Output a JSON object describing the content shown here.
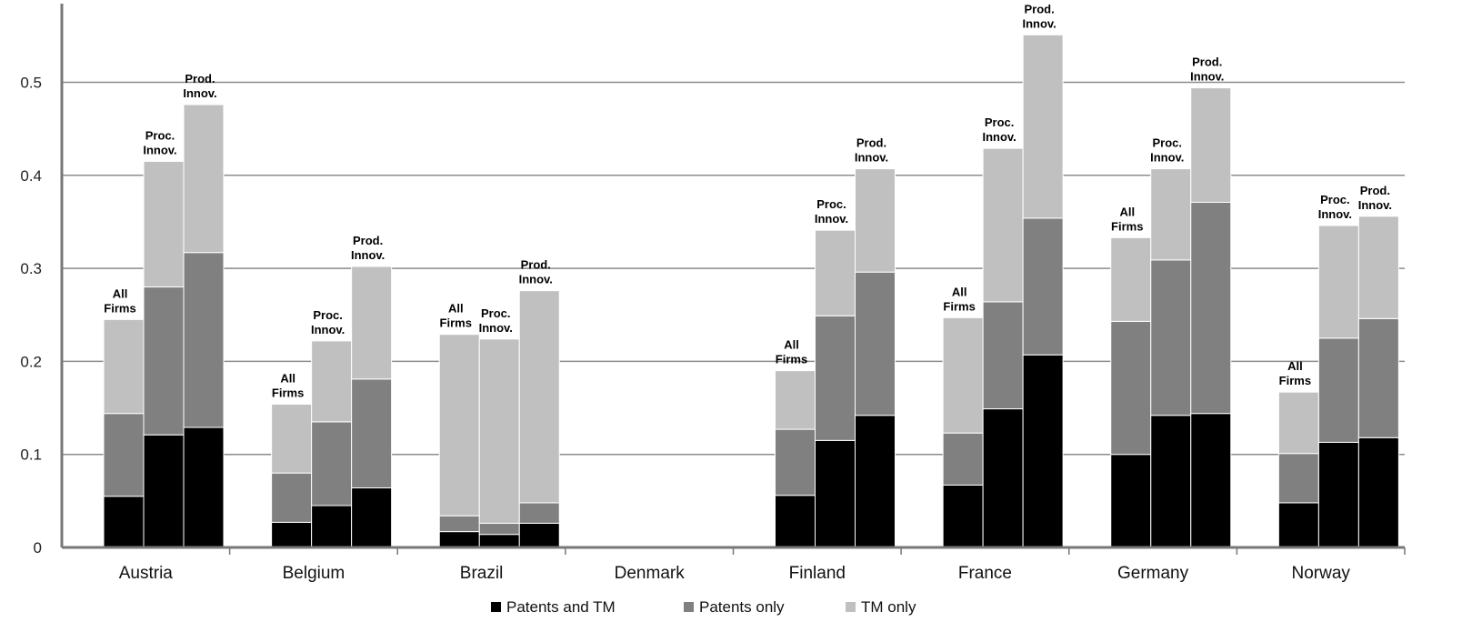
{
  "chart_data": {
    "type": "bar",
    "stacked": true,
    "title": "",
    "xlabel": "",
    "ylabel": "",
    "ylim": [
      0,
      0.55
    ],
    "yticks": [
      0,
      0.1,
      0.2,
      0.3,
      0.4,
      0.5
    ],
    "ytick_labels": [
      "0",
      "0.1",
      "0.2",
      "0.3",
      "0.4",
      "0.5"
    ],
    "grid": true,
    "legend_position": "bottom",
    "series": [
      {
        "name": "Patents and TM",
        "color": "#000000"
      },
      {
        "name": "Patents only",
        "color": "#808080"
      },
      {
        "name": "TM only",
        "color": "#c0c0c0"
      }
    ],
    "countries": [
      {
        "name": "Austria",
        "bars": [
          {
            "label_lines": [
              "All",
              "Firms"
            ],
            "values": [
              0.055,
              0.089,
              0.101
            ]
          },
          {
            "label_lines": [
              "Proc.",
              "Innov."
            ],
            "values": [
              0.121,
              0.159,
              0.135
            ]
          },
          {
            "label_lines": [
              "Prod.",
              "Innov."
            ],
            "values": [
              0.129,
              0.188,
              0.159
            ]
          }
        ]
      },
      {
        "name": "Belgium",
        "bars": [
          {
            "label_lines": [
              "All",
              "Firms"
            ],
            "values": [
              0.027,
              0.053,
              0.074
            ]
          },
          {
            "label_lines": [
              "Proc.",
              "Innov."
            ],
            "values": [
              0.045,
              0.09,
              0.087
            ]
          },
          {
            "label_lines": [
              "Prod.",
              "Innov."
            ],
            "values": [
              0.064,
              0.117,
              0.121
            ]
          }
        ]
      },
      {
        "name": "Brazil",
        "bars": [
          {
            "label_lines": [
              "All",
              "Firms"
            ],
            "values": [
              0.017,
              0.017,
              0.195
            ]
          },
          {
            "label_lines": [
              "Proc.",
              "Innov."
            ],
            "values": [
              0.014,
              0.012,
              0.198
            ]
          },
          {
            "label_lines": [
              "Prod.",
              "Innov."
            ],
            "values": [
              0.026,
              0.022,
              0.228
            ]
          }
        ]
      },
      {
        "name": "Denmark",
        "bars": []
      },
      {
        "name": "Finland",
        "bars": [
          {
            "label_lines": [
              "All",
              "Firms"
            ],
            "values": [
              0.056,
              0.071,
              0.063
            ]
          },
          {
            "label_lines": [
              "Proc.",
              "Innov."
            ],
            "values": [
              0.115,
              0.134,
              0.092
            ]
          },
          {
            "label_lines": [
              "Prod.",
              "Innov."
            ],
            "values": [
              0.142,
              0.154,
              0.111
            ]
          }
        ]
      },
      {
        "name": "France",
        "bars": [
          {
            "label_lines": [
              "All",
              "Firms"
            ],
            "values": [
              0.067,
              0.056,
              0.124
            ]
          },
          {
            "label_lines": [
              "Proc.",
              "Innov."
            ],
            "values": [
              0.149,
              0.115,
              0.165
            ]
          },
          {
            "label_lines": [
              "Prod.",
              "Innov."
            ],
            "values": [
              0.207,
              0.147,
              0.197
            ]
          }
        ]
      },
      {
        "name": "Germany",
        "bars": [
          {
            "label_lines": [
              "All",
              "Firms"
            ],
            "values": [
              0.1,
              0.143,
              0.09
            ]
          },
          {
            "label_lines": [
              "Proc.",
              "Innov."
            ],
            "values": [
              0.142,
              0.167,
              0.098
            ]
          },
          {
            "label_lines": [
              "Prod.",
              "Innov."
            ],
            "values": [
              0.144,
              0.227,
              0.123
            ]
          }
        ]
      },
      {
        "name": "Norway",
        "bars": [
          {
            "label_lines": [
              "All",
              "Firms"
            ],
            "values": [
              0.048,
              0.053,
              0.066
            ]
          },
          {
            "label_lines": [
              "Proc.",
              "Innov."
            ],
            "values": [
              0.113,
              0.112,
              0.121
            ]
          },
          {
            "label_lines": [
              "Prod.",
              "Innov."
            ],
            "values": [
              0.118,
              0.128,
              0.11
            ]
          }
        ]
      }
    ]
  }
}
